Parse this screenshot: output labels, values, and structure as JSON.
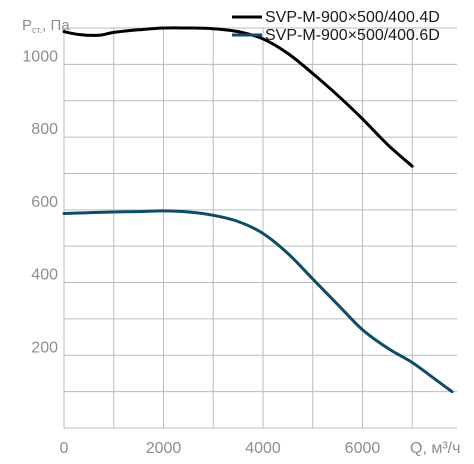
{
  "chart_data": {
    "type": "line",
    "ylabel": {
      "main": "P",
      "subscript": "ст.",
      "unit": ", Па"
    },
    "xlabel": "Q, м³/ч",
    "xlim": [
      0,
      7900
    ],
    "ylim": [
      0,
      1100
    ],
    "x_ticks": [
      0,
      2000,
      4000,
      6000
    ],
    "x_tick_labels": [
      "0",
      "2000",
      "4000",
      "6000"
    ],
    "y_ticks": [
      200,
      400,
      600,
      800,
      1000
    ],
    "y_tick_labels": [
      "200",
      "400",
      "600",
      "800",
      "1000"
    ],
    "grid": true,
    "legend_position": "top-right",
    "series": [
      {
        "name": "SVP-M-900×500/400.4D",
        "color": "#000000",
        "x": [
          0,
          300,
          700,
          1000,
          1500,
          2000,
          2500,
          3000,
          3500,
          4000,
          4500,
          5000,
          5500,
          6000,
          6500,
          7000
        ],
        "y": [
          1090,
          1082,
          1080,
          1088,
          1095,
          1100,
          1100,
          1098,
          1090,
          1070,
          1030,
          975,
          915,
          850,
          780,
          720
        ]
      },
      {
        "name": "SVP-M-900×500/400.6D",
        "color": "#0f4c66",
        "x": [
          0,
          500,
          1000,
          1500,
          2000,
          2500,
          3000,
          3500,
          4000,
          4500,
          5000,
          5500,
          6000,
          6500,
          7000,
          7500,
          7800
        ],
        "y": [
          590,
          592,
          594,
          595,
          597,
          594,
          585,
          568,
          535,
          480,
          410,
          340,
          270,
          220,
          180,
          130,
          100
        ]
      }
    ]
  }
}
